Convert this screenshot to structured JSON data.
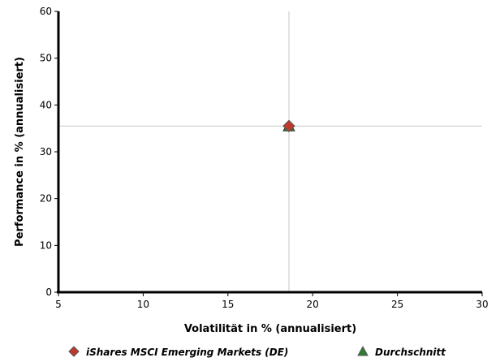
{
  "chart_data": {
    "type": "scatter",
    "xlabel": "Volatilität in % (annualisiert)",
    "ylabel": "Performance in % (annualisiert)",
    "xlim": [
      5,
      30
    ],
    "ylim": [
      0,
      60
    ],
    "x_ticks": [
      "5",
      "10",
      "15",
      "20",
      "25",
      "30"
    ],
    "y_ticks": [
      "0",
      "10",
      "20",
      "30",
      "40",
      "50",
      "60"
    ],
    "crosshair": {
      "x": 18.6,
      "y": 35.5
    },
    "series": [
      {
        "name": "iShares MSCI Emerging Markets (DE)",
        "marker": "diamond",
        "color": "#c0392b",
        "x": 18.6,
        "y": 35.5
      },
      {
        "name": "Durchschnitt",
        "marker": "triangle",
        "color": "#2e7d32",
        "x": 18.6,
        "y": 35.5
      }
    ]
  }
}
